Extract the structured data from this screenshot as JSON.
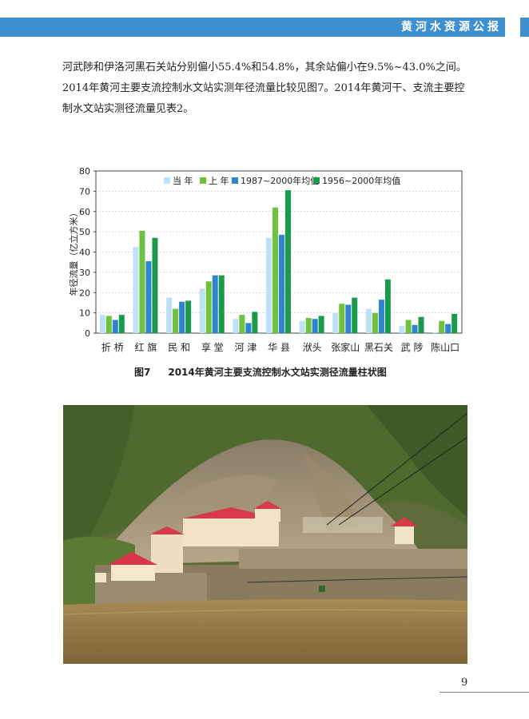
{
  "header": {
    "title": "黄河水资源公报"
  },
  "body_text": "河武陟和伊洛河黑石关站分别偏小55.4%和54.8%，其余站偏小在9.5%~43.0%之间。2014年黄河主要支流控制水文站实测年径流量比较见图7。2014年黄河干、支流主要控制水文站实测径流量见表2。",
  "caption": {
    "number": "图7",
    "text": "2014年黄河主要支流控制水文站实测径流量柱状图"
  },
  "page_number": "9",
  "colors": {
    "header": "#3d8fd0",
    "series": [
      "#bfe1f5",
      "#6ec33e",
      "#2f84cf",
      "#1b9a4c"
    ]
  },
  "chart_data": {
    "type": "bar",
    "ylabel": "年径流量（亿立方米）",
    "ylim": [
      0,
      80
    ],
    "yticks": [
      0,
      10,
      20,
      30,
      40,
      50,
      60,
      70,
      80
    ],
    "grid": true,
    "legend_position": "top",
    "categories": [
      "折 桥",
      "红 旗",
      "民 和",
      "享 堂",
      "河 津",
      "华 县",
      "洑头",
      "张家山",
      "黑石关",
      "武 陟",
      "陈山口"
    ],
    "series": [
      {
        "name": "当 年",
        "values": [
          9.0,
          42.5,
          17.5,
          22.0,
          7.0,
          47.0,
          6.0,
          10.0,
          12.0,
          3.5,
          0.5
        ]
      },
      {
        "name": "上 年",
        "values": [
          8.5,
          50.5,
          12.0,
          25.5,
          9.0,
          62.0,
          7.5,
          14.5,
          10.0,
          6.5,
          6.0
        ]
      },
      {
        "name": "1987~2000年均值",
        "values": [
          6.5,
          35.5,
          15.5,
          28.5,
          5.0,
          48.5,
          7.0,
          14.0,
          16.5,
          4.0,
          4.5
        ]
      },
      {
        "name": "1956~2000年均值",
        "values": [
          9.0,
          47.0,
          16.0,
          28.5,
          10.5,
          70.5,
          8.5,
          17.5,
          26.5,
          8.0,
          9.5
        ]
      }
    ]
  }
}
